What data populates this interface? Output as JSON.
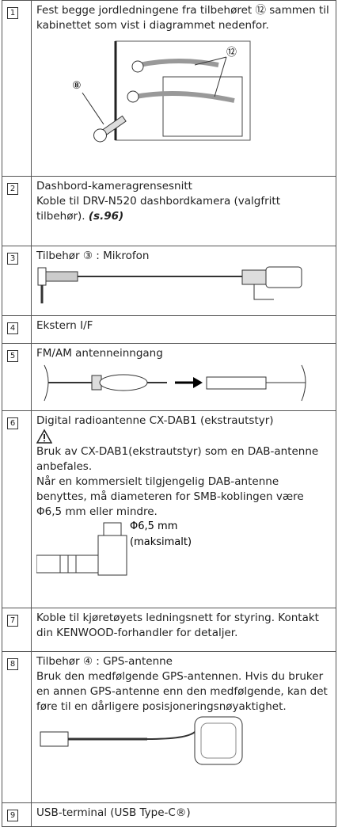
{
  "rows": [
    {
      "number": "1",
      "paragraphs": [
        "Fest begge jordledningene fra tilbehøret ⑫ sammen til kabinettet som vist i diagrammet nedenfor."
      ],
      "labels": [
        "⑫",
        "⑧"
      ]
    },
    {
      "number": "2",
      "paragraphs": [
        "Dashbord-kameragrensesnitt",
        "Koble til DRV-N520 dashbordkamera (valgfritt tilbehør)."
      ],
      "reference": "(s.96)"
    },
    {
      "number": "3",
      "paragraphs": [
        "Tilbehør ③ : Mikrofon"
      ]
    },
    {
      "number": "4",
      "paragraphs": [
        "Ekstern I/F"
      ]
    },
    {
      "number": "5",
      "paragraphs": [
        "FM/AM antenneinngang"
      ]
    },
    {
      "number": "6",
      "paragraphs": [
        "Digital radioantenne CX-DAB1 (ekstrautstyr)",
        "Bruk av CX-DAB1(ekstrautstyr) som en DAB-antenne anbefales.",
        "Når en kommersielt tilgjengelig DAB-antenne benyttes, må diameteren for SMB-koblingen være Φ6,5 mm eller mindre."
      ],
      "labels": [
        "Φ6,5 mm",
        "(maksimalt)"
      ]
    },
    {
      "number": "7",
      "paragraphs": [
        "Koble til kjøretøyets ledningsnett for styring. Kontakt din KENWOOD-forhandler for detaljer."
      ]
    },
    {
      "number": "8",
      "paragraphs": [
        "Tilbehør ④ : GPS-antenne",
        "Bruk den medfølgende GPS-antennen. Hvis du bruker en annen GPS-antenne enn den medfølgende, kan det føre til en dårligere posisjoneringsnøyaktighet."
      ]
    },
    {
      "number": "9",
      "paragraphs": [
        "USB-terminal (USB Type-C®)"
      ]
    }
  ]
}
